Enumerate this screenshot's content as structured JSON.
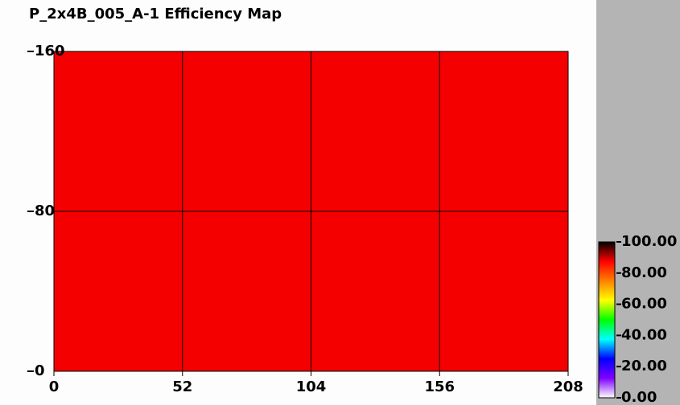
{
  "chart_data": {
    "type": "heatmap",
    "title": "P_2x4B_005_A-1 Efficiency Map",
    "xbins": [
      0,
      208
    ],
    "ybins": [
      0,
      160
    ],
    "values": [
      [
        88
      ]
    ],
    "xlim": [
      0,
      208
    ],
    "xticks": [
      0,
      52,
      104,
      156,
      208
    ],
    "ylim": [
      0,
      160
    ],
    "yticks": [
      0,
      80,
      160
    ],
    "grid": true,
    "colorbar": {
      "lim": [
        0,
        100
      ],
      "ticks": [
        {
          "value": 0,
          "label": "0.00"
        },
        {
          "value": 20,
          "label": "20.00"
        },
        {
          "value": 40,
          "label": "40.00"
        },
        {
          "value": 60,
          "label": "60.00"
        },
        {
          "value": 80,
          "label": "80.00"
        },
        {
          "value": 100,
          "label": "100.00"
        }
      ],
      "colors": [
        "#ffffff",
        "#8000ff",
        "#0000ff",
        "#00ffff",
        "#00ff00",
        "#ffff00",
        "#ff8000",
        "#ff0000",
        "#000000"
      ]
    }
  }
}
